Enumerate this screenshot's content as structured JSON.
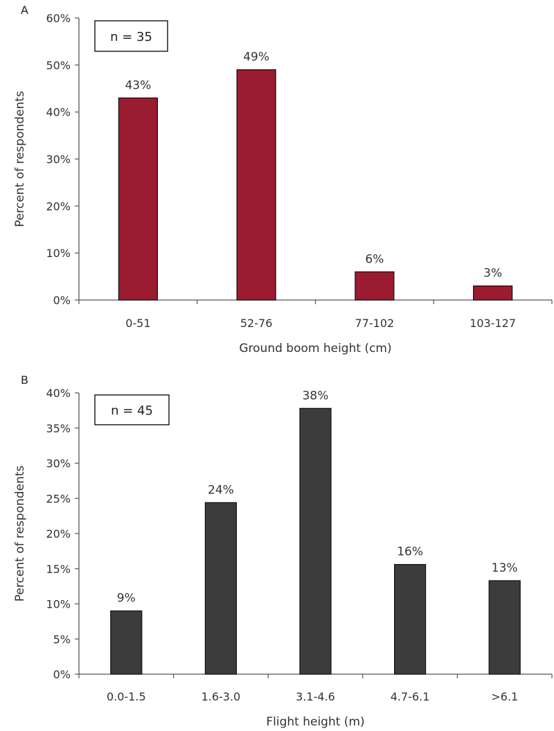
{
  "chart_data": [
    {
      "panel": "A",
      "type": "bar",
      "annotation": "n = 35",
      "categories": [
        "0-51",
        "52-76",
        "77-102",
        "103-127"
      ],
      "values": [
        43,
        49,
        6,
        3
      ],
      "value_labels": [
        "43%",
        "49%",
        "6%",
        "3%"
      ],
      "xlabel": "Ground boom height (cm)",
      "ylabel": "Percent of respondents",
      "ylim": [
        0,
        60
      ],
      "yticks": [
        0,
        10,
        20,
        30,
        40,
        50,
        60
      ],
      "ytick_labels": [
        "0%",
        "10%",
        "20%",
        "30%",
        "40%",
        "50%",
        "60%"
      ],
      "bar_color": "#9b1b30",
      "grid": false
    },
    {
      "panel": "B",
      "type": "bar",
      "annotation": "n = 45",
      "categories": [
        "0.0-1.5",
        "1.6-3.0",
        "3.1-4.6",
        "4.7-6.1",
        ">6.1"
      ],
      "values": [
        9,
        24.4,
        37.8,
        15.6,
        13.3
      ],
      "value_labels": [
        "9%",
        "24%",
        "38%",
        "16%",
        "13%"
      ],
      "xlabel": "Flight height (m)",
      "ylabel": "Percent of respondents",
      "ylim": [
        0,
        40
      ],
      "yticks": [
        0,
        5,
        10,
        15,
        20,
        25,
        30,
        35,
        40
      ],
      "ytick_labels": [
        "0%",
        "5%",
        "10%",
        "15%",
        "20%",
        "25%",
        "30%",
        "35%",
        "40%"
      ],
      "bar_color": "#3c3c3c",
      "grid": false
    }
  ]
}
